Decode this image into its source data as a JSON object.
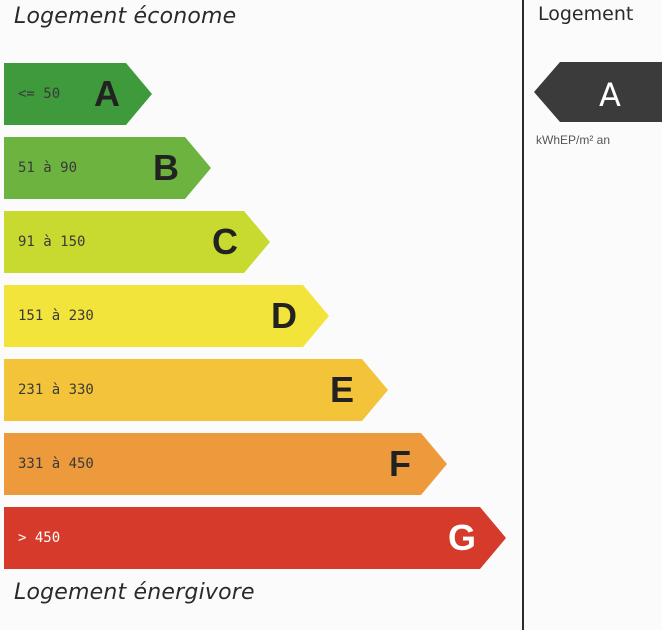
{
  "chart_data": {
    "type": "bar",
    "title_top": "Logement économe",
    "title_bottom": "Logement énergivore",
    "categories": [
      "A",
      "B",
      "C",
      "D",
      "E",
      "F",
      "G"
    ],
    "ranges": [
      "<= 50",
      "51 à 90",
      "91 à 150",
      "151 à 230",
      "231 à 330",
      "331 à 450",
      "> 450"
    ],
    "colors": [
      "#3f9a3c",
      "#6db33f",
      "#c8d92f",
      "#f2e43a",
      "#f3c43a",
      "#ec9a3b",
      "#d63a2a"
    ]
  },
  "indicator": {
    "heading": "Logement",
    "value": "A",
    "unit": "kWhEP/m² an",
    "color": "#3b3b3b"
  }
}
